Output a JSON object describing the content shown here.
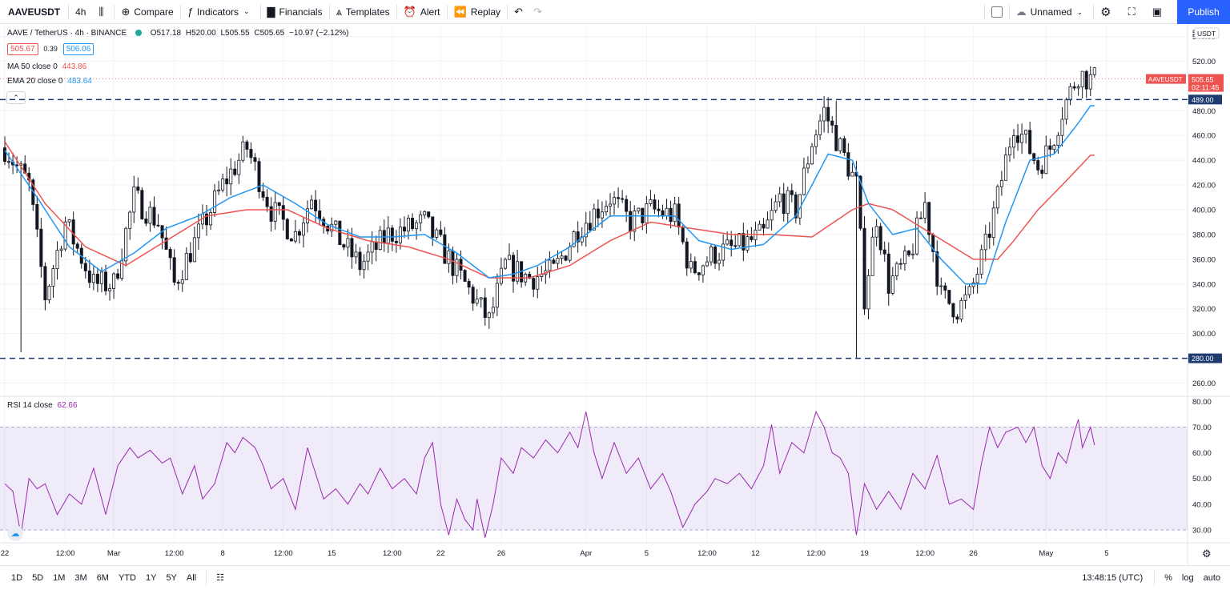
{
  "toolbar": {
    "symbol": "AAVEUSDT",
    "interval": "4h",
    "compare": "Compare",
    "indicators": "Indicators",
    "financials": "Financials",
    "templates": "Templates",
    "alert": "Alert",
    "replay": "Replay",
    "layout_name": "Unnamed",
    "publish": "Publish"
  },
  "legend": {
    "title": "AAVE / TetherUS · 4h · BINANCE",
    "open": "O517.18",
    "high": "H520.00",
    "low": "L505.55",
    "close": "C505.65",
    "change": "−10.97 (−2.12%)",
    "bid": "505.67",
    "spread": "0.39",
    "ask": "506.06",
    "ma_label": "MA 50 close 0",
    "ma_value": "443.86",
    "ema_label": "EMA 20 close 0",
    "ema_value": "483.64",
    "rsi_label": "RSI 14 close",
    "rsi_value": "62.66"
  },
  "price_axis": {
    "currency": "USDT",
    "ticks": [
      "540.00",
      "520.00",
      "480.00",
      "460.00",
      "440.00",
      "420.00",
      "400.00",
      "380.00",
      "360.00",
      "340.00",
      "320.00",
      "300.00",
      "260.00"
    ],
    "symbol_tag": "AAVEUSDT",
    "last_price": "505.65",
    "countdown": "02:11:45",
    "level_upper": "489.00",
    "level_lower": "280.00",
    "top_partial": "5"
  },
  "rsi_axis": {
    "ticks": [
      "80.00",
      "70.00",
      "60.00",
      "50.00",
      "40.00",
      "30.00"
    ]
  },
  "time_axis": {
    "labels": [
      {
        "t": "22",
        "i": 0
      },
      {
        "t": "12:00",
        "i": 15
      },
      {
        "t": "Mar",
        "i": 27
      },
      {
        "t": "12:00",
        "i": 42
      },
      {
        "t": "8",
        "i": 54
      },
      {
        "t": "12:00",
        "i": 69
      },
      {
        "t": "15",
        "i": 81
      },
      {
        "t": "12:00",
        "i": 96
      },
      {
        "t": "22",
        "i": 108
      },
      {
        "t": "26",
        "i": 123
      },
      {
        "t": "Apr",
        "i": 144
      },
      {
        "t": "5",
        "i": 159
      },
      {
        "t": "12:00",
        "i": 174
      },
      {
        "t": "12",
        "i": 186
      },
      {
        "t": "12:00",
        "i": 201
      },
      {
        "t": "19",
        "i": 213
      },
      {
        "t": "12:00",
        "i": 228
      },
      {
        "t": "26",
        "i": 240
      },
      {
        "t": "May",
        "i": 258
      },
      {
        "t": "5",
        "i": 273
      }
    ]
  },
  "bottom": {
    "ranges": [
      "1D",
      "5D",
      "1M",
      "3M",
      "6M",
      "YTD",
      "1Y",
      "5Y",
      "All"
    ],
    "time": "13:48:15 (UTC)",
    "percent": "%",
    "log": "log",
    "auto": "auto"
  },
  "colors": {
    "up": "#131722",
    "down": "#131722",
    "ma": "#ef5350",
    "ema": "#2196f3",
    "rsi": "#9c27b0",
    "level": "#1e3a6e",
    "accent": "#2962ff"
  },
  "chart_data": {
    "type": "candlestick",
    "price_range": [
      250,
      550
    ],
    "rsi_range": [
      25,
      82
    ],
    "rsi_band": [
      30,
      70
    ],
    "levels": [
      489,
      280
    ],
    "close_anchors": [
      [
        0,
        450
      ],
      [
        6,
        420
      ],
      [
        10,
        330
      ],
      [
        15,
        390
      ],
      [
        22,
        340
      ],
      [
        27,
        340
      ],
      [
        32,
        410
      ],
      [
        38,
        390
      ],
      [
        42,
        340
      ],
      [
        48,
        380
      ],
      [
        54,
        420
      ],
      [
        60,
        450
      ],
      [
        66,
        400
      ],
      [
        72,
        380
      ],
      [
        76,
        410
      ],
      [
        82,
        380
      ],
      [
        88,
        355
      ],
      [
        95,
        380
      ],
      [
        100,
        385
      ],
      [
        104,
        390
      ],
      [
        108,
        370
      ],
      [
        112,
        350
      ],
      [
        117,
        325
      ],
      [
        120,
        310
      ],
      [
        124,
        355
      ],
      [
        130,
        345
      ],
      [
        136,
        350
      ],
      [
        142,
        385
      ],
      [
        150,
        410
      ],
      [
        155,
        390
      ],
      [
        160,
        400
      ],
      [
        166,
        395
      ],
      [
        170,
        350
      ],
      [
        176,
        365
      ],
      [
        182,
        370
      ],
      [
        188,
        380
      ],
      [
        192,
        410
      ],
      [
        196,
        400
      ],
      [
        200,
        455
      ],
      [
        203,
        480
      ],
      [
        207,
        450
      ],
      [
        211,
        420
      ],
      [
        213,
        330
      ],
      [
        216,
        395
      ],
      [
        219,
        340
      ],
      [
        224,
        360
      ],
      [
        228,
        405
      ],
      [
        232,
        330
      ],
      [
        236,
        320
      ],
      [
        239,
        330
      ],
      [
        243,
        370
      ],
      [
        246,
        410
      ],
      [
        250,
        470
      ],
      [
        253,
        455
      ],
      [
        256,
        435
      ],
      [
        259,
        450
      ],
      [
        262,
        480
      ],
      [
        266,
        510
      ],
      [
        269,
        505
      ]
    ],
    "ma50_anchors": [
      [
        0,
        455
      ],
      [
        10,
        405
      ],
      [
        20,
        370
      ],
      [
        30,
        355
      ],
      [
        40,
        375
      ],
      [
        50,
        395
      ],
      [
        60,
        400
      ],
      [
        70,
        400
      ],
      [
        80,
        385
      ],
      [
        90,
        375
      ],
      [
        100,
        370
      ],
      [
        110,
        360
      ],
      [
        120,
        345
      ],
      [
        130,
        345
      ],
      [
        140,
        355
      ],
      [
        150,
        375
      ],
      [
        160,
        390
      ],
      [
        170,
        385
      ],
      [
        180,
        380
      ],
      [
        190,
        380
      ],
      [
        200,
        378
      ],
      [
        210,
        400
      ],
      [
        214,
        405
      ],
      [
        220,
        400
      ],
      [
        230,
        380
      ],
      [
        240,
        360
      ],
      [
        246,
        360
      ],
      [
        250,
        375
      ],
      [
        256,
        400
      ],
      [
        262,
        420
      ],
      [
        269,
        444
      ]
    ],
    "ema20_anchors": [
      [
        0,
        448
      ],
      [
        8,
        410
      ],
      [
        16,
        370
      ],
      [
        24,
        350
      ],
      [
        32,
        365
      ],
      [
        40,
        385
      ],
      [
        48,
        395
      ],
      [
        56,
        410
      ],
      [
        64,
        420
      ],
      [
        72,
        405
      ],
      [
        80,
        388
      ],
      [
        88,
        378
      ],
      [
        96,
        378
      ],
      [
        104,
        380
      ],
      [
        112,
        365
      ],
      [
        120,
        345
      ],
      [
        126,
        348
      ],
      [
        132,
        355
      ],
      [
        140,
        370
      ],
      [
        150,
        395
      ],
      [
        158,
        395
      ],
      [
        166,
        395
      ],
      [
        172,
        375
      ],
      [
        180,
        368
      ],
      [
        188,
        372
      ],
      [
        196,
        395
      ],
      [
        204,
        445
      ],
      [
        210,
        440
      ],
      [
        214,
        405
      ],
      [
        220,
        380
      ],
      [
        226,
        385
      ],
      [
        232,
        360
      ],
      [
        238,
        340
      ],
      [
        243,
        340
      ],
      [
        248,
        390
      ],
      [
        254,
        440
      ],
      [
        260,
        445
      ],
      [
        266,
        470
      ],
      [
        269,
        484
      ]
    ],
    "rsi_anchors": [
      [
        0,
        48
      ],
      [
        2,
        45
      ],
      [
        4,
        28
      ],
      [
        6,
        50
      ],
      [
        8,
        46
      ],
      [
        10,
        48
      ],
      [
        13,
        36
      ],
      [
        16,
        44
      ],
      [
        19,
        40
      ],
      [
        22,
        54
      ],
      [
        25,
        36
      ],
      [
        28,
        55
      ],
      [
        31,
        62
      ],
      [
        33,
        58
      ],
      [
        36,
        61
      ],
      [
        39,
        56
      ],
      [
        41,
        58
      ],
      [
        44,
        44
      ],
      [
        47,
        55
      ],
      [
        49,
        42
      ],
      [
        52,
        48
      ],
      [
        55,
        64
      ],
      [
        57,
        60
      ],
      [
        59,
        66
      ],
      [
        62,
        62
      ],
      [
        64,
        55
      ],
      [
        66,
        46
      ],
      [
        69,
        50
      ],
      [
        72,
        38
      ],
      [
        75,
        62
      ],
      [
        77,
        52
      ],
      [
        79,
        42
      ],
      [
        82,
        46
      ],
      [
        85,
        40
      ],
      [
        88,
        48
      ],
      [
        90,
        44
      ],
      [
        93,
        54
      ],
      [
        96,
        46
      ],
      [
        99,
        50
      ],
      [
        102,
        44
      ],
      [
        104,
        58
      ],
      [
        106,
        64
      ],
      [
        108,
        40
      ],
      [
        110,
        28
      ],
      [
        112,
        42
      ],
      [
        114,
        34
      ],
      [
        116,
        30
      ],
      [
        117,
        42
      ],
      [
        119,
        27
      ],
      [
        121,
        40
      ],
      [
        123,
        58
      ],
      [
        126,
        52
      ],
      [
        128,
        62
      ],
      [
        131,
        58
      ],
      [
        134,
        65
      ],
      [
        137,
        60
      ],
      [
        140,
        68
      ],
      [
        142,
        62
      ],
      [
        144,
        76
      ],
      [
        146,
        60
      ],
      [
        148,
        50
      ],
      [
        151,
        64
      ],
      [
        154,
        52
      ],
      [
        157,
        58
      ],
      [
        160,
        46
      ],
      [
        163,
        52
      ],
      [
        165,
        45
      ],
      [
        168,
        31
      ],
      [
        171,
        40
      ],
      [
        174,
        45
      ],
      [
        176,
        50
      ],
      [
        179,
        48
      ],
      [
        182,
        52
      ],
      [
        185,
        46
      ],
      [
        188,
        55
      ],
      [
        190,
        71
      ],
      [
        192,
        52
      ],
      [
        195,
        64
      ],
      [
        198,
        60
      ],
      [
        201,
        76
      ],
      [
        203,
        70
      ],
      [
        205,
        60
      ],
      [
        207,
        58
      ],
      [
        209,
        52
      ],
      [
        211,
        28
      ],
      [
        213,
        48
      ],
      [
        216,
        38
      ],
      [
        219,
        45
      ],
      [
        222,
        38
      ],
      [
        225,
        52
      ],
      [
        228,
        46
      ],
      [
        231,
        59
      ],
      [
        234,
        40
      ],
      [
        237,
        42
      ],
      [
        240,
        38
      ],
      [
        242,
        56
      ],
      [
        244,
        70
      ],
      [
        246,
        62
      ],
      [
        248,
        68
      ],
      [
        251,
        70
      ],
      [
        253,
        64
      ],
      [
        255,
        70
      ],
      [
        257,
        55
      ],
      [
        259,
        50
      ],
      [
        261,
        60
      ],
      [
        263,
        56
      ],
      [
        265,
        68
      ],
      [
        266,
        73
      ],
      [
        267,
        62
      ],
      [
        269,
        70
      ],
      [
        270,
        63
      ]
    ]
  }
}
